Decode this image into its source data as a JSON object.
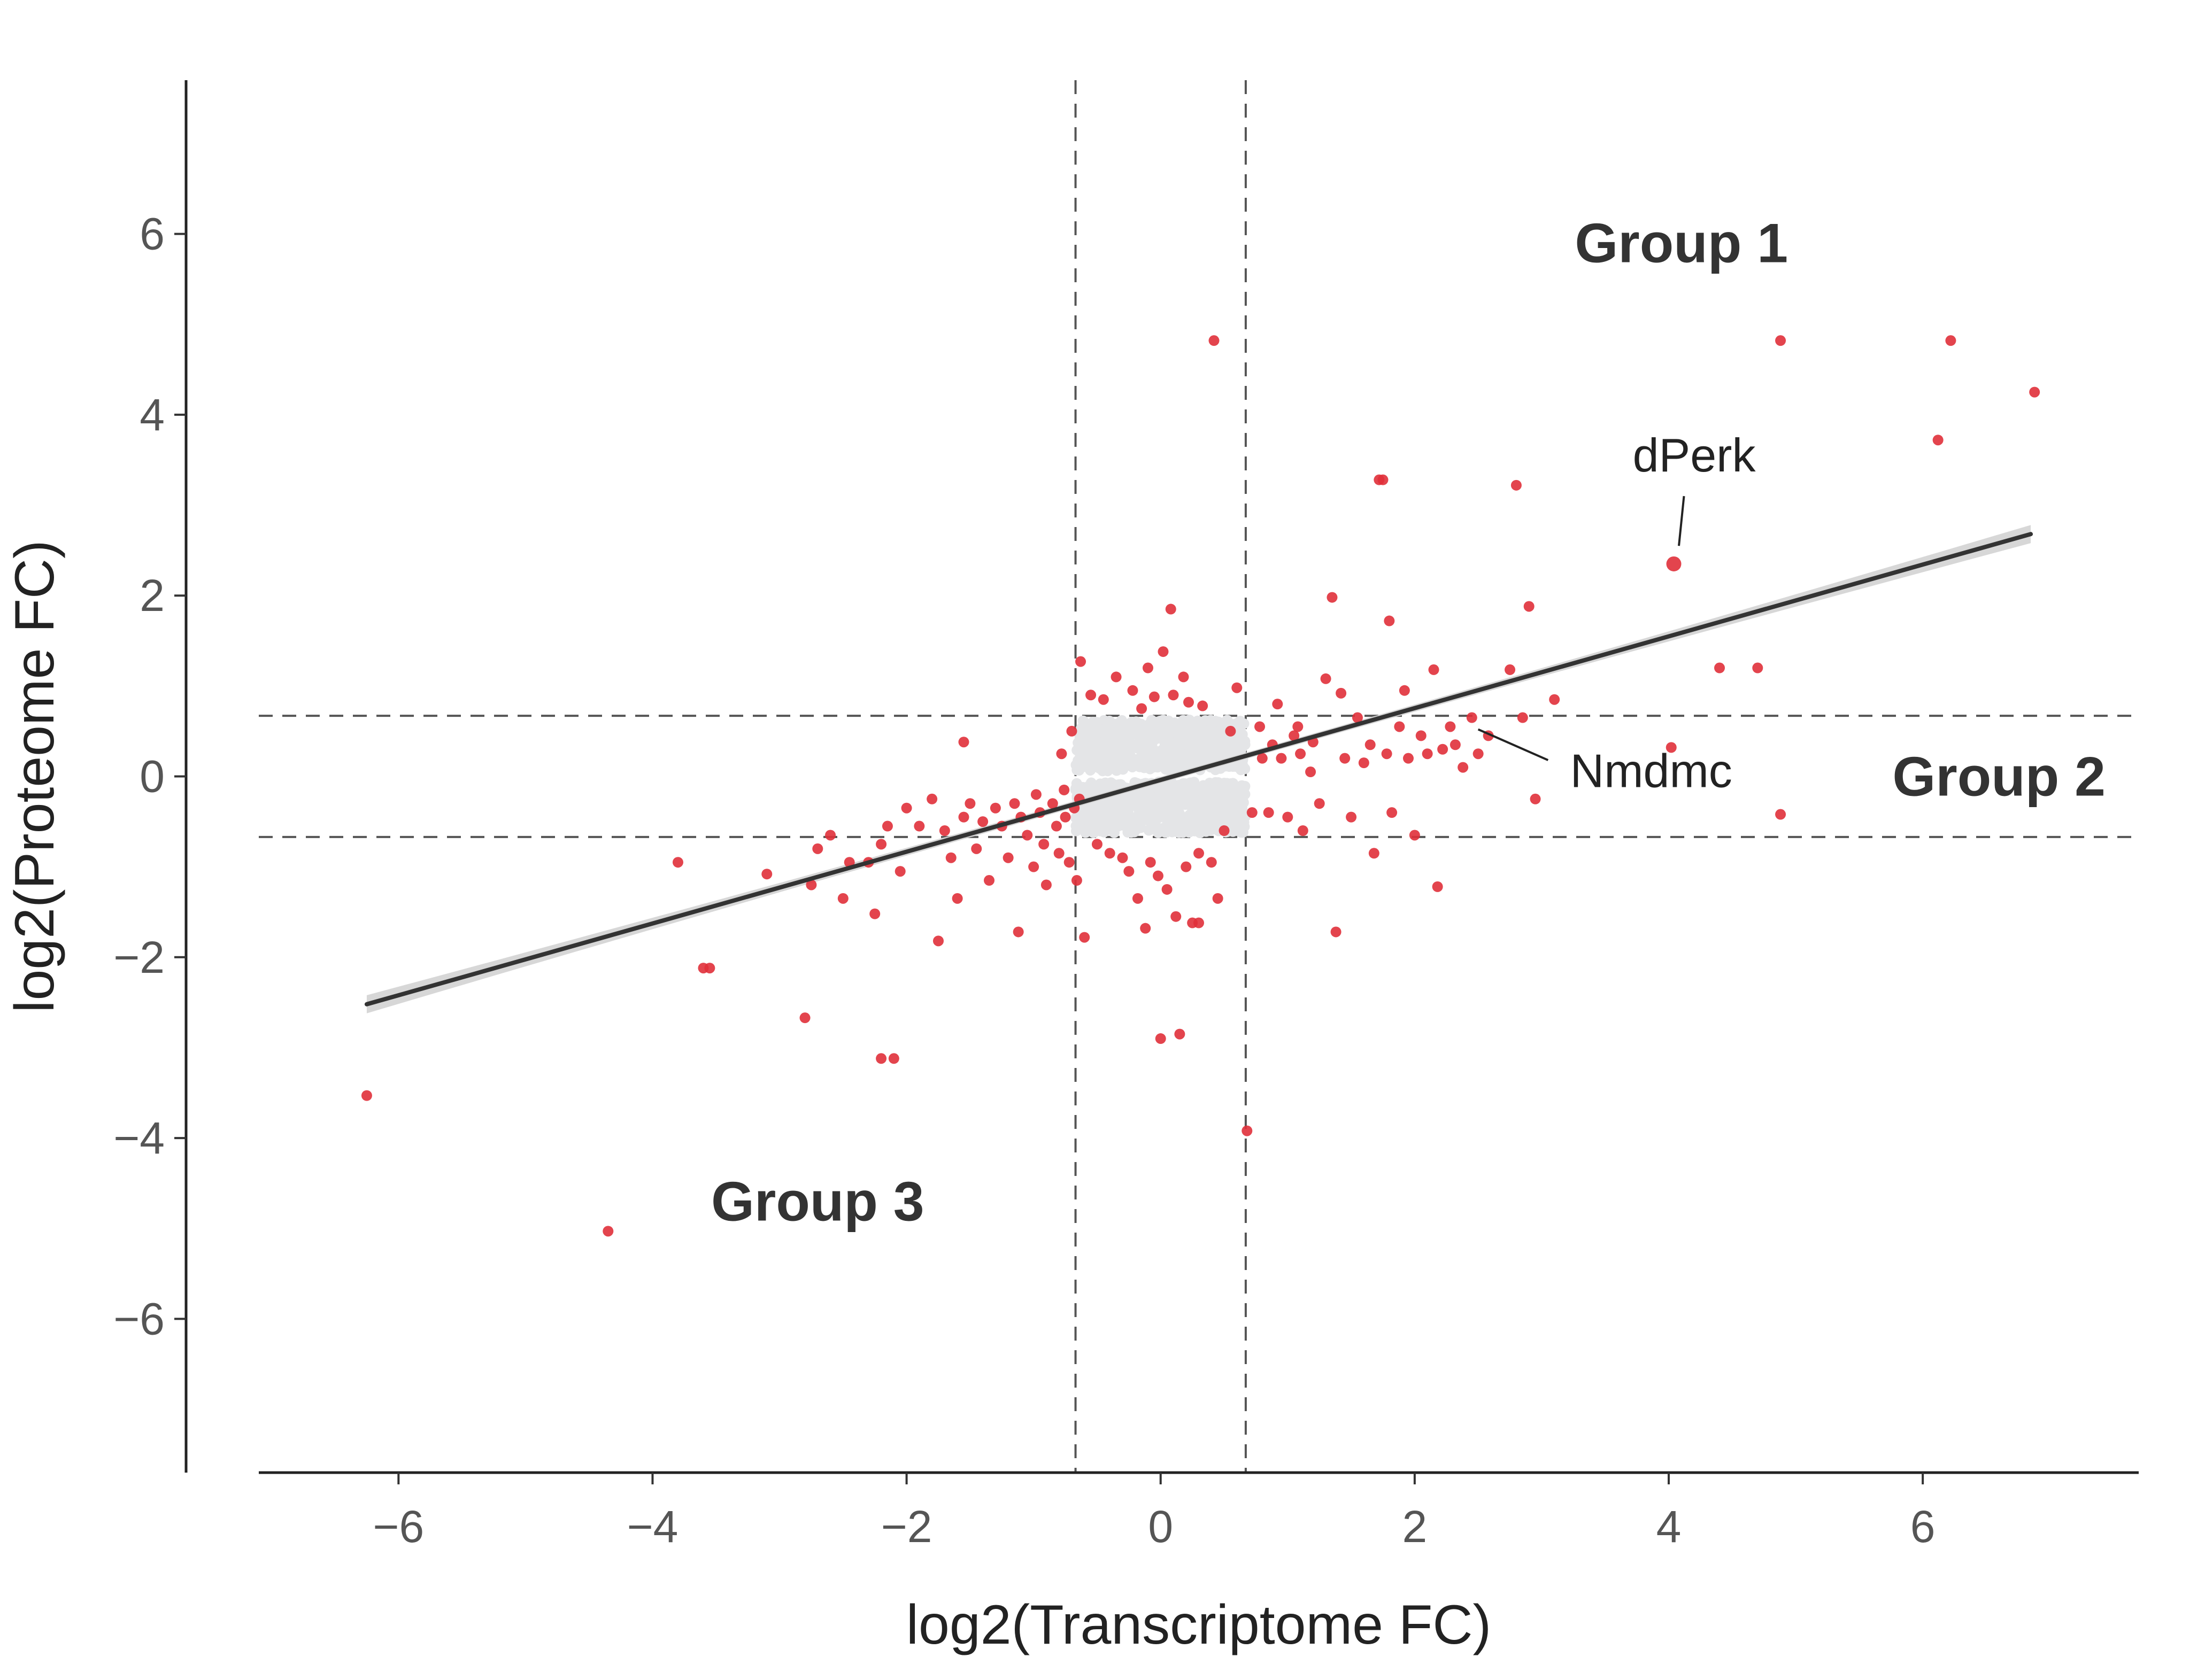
{
  "chart_data": {
    "type": "scatter",
    "title": "",
    "xlabel": "log2(Transcriptome FC)",
    "ylabel": "log2(Proteome  FC)",
    "xlim": [
      -7.1,
      7.7
    ],
    "ylim": [
      -7.7,
      7.7
    ],
    "xticks": [
      -6,
      -4,
      -2,
      0,
      2,
      4,
      6
    ],
    "yticks": [
      -6,
      -4,
      -2,
      0,
      2,
      4,
      6
    ],
    "xtick_labels": [
      "−6",
      "−4",
      "−2",
      "0",
      "2",
      "4",
      "6"
    ],
    "ytick_labels": [
      "−6",
      "−4",
      "−2",
      "0",
      "2",
      "4",
      "6"
    ],
    "thresholds": {
      "x": [
        -0.67,
        0.67
      ],
      "y": [
        -0.67,
        0.67
      ]
    },
    "regression": {
      "x": [
        -6.25,
        6.85
      ],
      "y": [
        -2.52,
        2.68
      ],
      "ci_halfwidth": 0.1
    },
    "colors": {
      "significant": "#e0303a",
      "nonsignificant": "#e4e5e7",
      "line": "#333333",
      "ci": "#d3d3d3",
      "dashed": "#555555"
    },
    "groups": [
      {
        "name": "Group 1",
        "x": 4.1,
        "y": 5.9
      },
      {
        "name": "Group 2",
        "x": 6.6,
        "y": 0.0
      },
      {
        "name": "Group 3",
        "x": -2.7,
        "y": -4.7
      }
    ],
    "annotations": [
      {
        "label": "dPerk",
        "x": 4.04,
        "y": 2.35,
        "label_x": 4.2,
        "label_y": 3.55
      },
      {
        "label": "Nmdmc",
        "x": 2.42,
        "y": 0.58,
        "label_x": 4.5,
        "label_y": 0.0
      }
    ],
    "nonsignificant_cloud": {
      "x_range": [
        -0.67,
        0.67
      ],
      "y_range": [
        -0.67,
        0.67
      ],
      "count": 1400
    },
    "series": [
      {
        "name": "significant",
        "points": [
          [
            -6.25,
            -3.53
          ],
          [
            -4.35,
            -5.03
          ],
          [
            -3.8,
            -0.95
          ],
          [
            -3.6,
            -2.12
          ],
          [
            -3.55,
            -2.12
          ],
          [
            -3.1,
            -1.08
          ],
          [
            -2.8,
            -2.67
          ],
          [
            -2.75,
            -1.2
          ],
          [
            -2.7,
            -0.8
          ],
          [
            -2.6,
            -0.65
          ],
          [
            -2.5,
            -1.35
          ],
          [
            -2.45,
            -0.95
          ],
          [
            -2.3,
            -0.95
          ],
          [
            -2.25,
            -1.52
          ],
          [
            -2.2,
            -0.75
          ],
          [
            -2.2,
            -3.12
          ],
          [
            -2.1,
            -3.12
          ],
          [
            -2.15,
            -0.55
          ],
          [
            -2.05,
            -1.05
          ],
          [
            -2.0,
            -0.35
          ],
          [
            -1.9,
            -0.55
          ],
          [
            -1.8,
            -0.25
          ],
          [
            -1.75,
            -1.82
          ],
          [
            -1.7,
            -0.6
          ],
          [
            -1.65,
            -0.9
          ],
          [
            -1.6,
            -1.35
          ],
          [
            -1.55,
            -0.45
          ],
          [
            -1.55,
            0.38
          ],
          [
            -1.5,
            -0.3
          ],
          [
            -1.45,
            -0.8
          ],
          [
            -1.4,
            -0.5
          ],
          [
            -1.35,
            -1.15
          ],
          [
            -1.3,
            -0.35
          ],
          [
            -1.25,
            -0.55
          ],
          [
            -1.2,
            -0.9
          ],
          [
            -1.15,
            -0.3
          ],
          [
            -1.12,
            -1.72
          ],
          [
            -1.1,
            -0.45
          ],
          [
            -1.05,
            -0.65
          ],
          [
            -1.0,
            -1.0
          ],
          [
            -0.98,
            -0.2
          ],
          [
            -0.95,
            -0.4
          ],
          [
            -0.92,
            -0.75
          ],
          [
            -0.9,
            -1.2
          ],
          [
            -0.85,
            -0.3
          ],
          [
            -0.82,
            -0.55
          ],
          [
            -0.8,
            -0.85
          ],
          [
            -0.78,
            0.25
          ],
          [
            -0.76,
            -0.15
          ],
          [
            -0.75,
            -0.45
          ],
          [
            -0.72,
            -0.95
          ],
          [
            -0.7,
            0.5
          ],
          [
            -0.68,
            -0.35
          ],
          [
            -0.66,
            -1.15
          ],
          [
            -0.64,
            -0.25
          ],
          [
            -0.63,
            1.27
          ],
          [
            -0.6,
            -1.78
          ],
          [
            -0.55,
            0.9
          ],
          [
            -0.5,
            -0.75
          ],
          [
            -0.45,
            0.85
          ],
          [
            -0.4,
            -0.85
          ],
          [
            -0.35,
            1.1
          ],
          [
            -0.3,
            -0.9
          ],
          [
            -0.25,
            -1.05
          ],
          [
            -0.22,
            0.95
          ],
          [
            -0.18,
            -1.35
          ],
          [
            -0.15,
            0.75
          ],
          [
            -0.12,
            -1.68
          ],
          [
            -0.1,
            1.2
          ],
          [
            -0.08,
            -0.95
          ],
          [
            -0.05,
            0.88
          ],
          [
            -0.02,
            -1.1
          ],
          [
            0.0,
            -2.9
          ],
          [
            0.02,
            1.38
          ],
          [
            0.05,
            -1.25
          ],
          [
            0.08,
            1.85
          ],
          [
            0.1,
            0.9
          ],
          [
            0.12,
            -1.55
          ],
          [
            0.15,
            -2.85
          ],
          [
            0.18,
            1.1
          ],
          [
            0.2,
            -1.0
          ],
          [
            0.22,
            0.82
          ],
          [
            0.25,
            -1.62
          ],
          [
            0.3,
            -1.62
          ],
          [
            0.3,
            -0.85
          ],
          [
            0.33,
            0.78
          ],
          [
            0.4,
            -0.95
          ],
          [
            0.42,
            4.82
          ],
          [
            0.45,
            -1.35
          ],
          [
            0.5,
            -0.6
          ],
          [
            0.55,
            0.5
          ],
          [
            0.6,
            0.98
          ],
          [
            0.68,
            -3.92
          ],
          [
            0.72,
            -0.4
          ],
          [
            0.78,
            0.55
          ],
          [
            0.8,
            0.2
          ],
          [
            0.85,
            -0.4
          ],
          [
            0.88,
            0.35
          ],
          [
            0.92,
            0.8
          ],
          [
            0.95,
            0.2
          ],
          [
            1.0,
            -0.45
          ],
          [
            1.05,
            0.45
          ],
          [
            1.08,
            0.55
          ],
          [
            1.1,
            0.25
          ],
          [
            1.12,
            -0.6
          ],
          [
            1.18,
            0.05
          ],
          [
            1.2,
            0.38
          ],
          [
            1.25,
            -0.3
          ],
          [
            1.3,
            1.08
          ],
          [
            1.35,
            1.98
          ],
          [
            1.38,
            -1.72
          ],
          [
            1.42,
            0.92
          ],
          [
            1.45,
            0.2
          ],
          [
            1.5,
            -0.45
          ],
          [
            1.55,
            0.65
          ],
          [
            1.6,
            0.15
          ],
          [
            1.65,
            0.35
          ],
          [
            1.68,
            -0.85
          ],
          [
            1.72,
            3.28
          ],
          [
            1.75,
            3.28
          ],
          [
            1.78,
            0.25
          ],
          [
            1.8,
            1.72
          ],
          [
            1.82,
            -0.4
          ],
          [
            1.88,
            0.55
          ],
          [
            1.92,
            0.95
          ],
          [
            1.95,
            0.2
          ],
          [
            2.0,
            -0.65
          ],
          [
            2.05,
            0.45
          ],
          [
            2.1,
            0.25
          ],
          [
            2.15,
            1.18
          ],
          [
            2.18,
            -1.22
          ],
          [
            2.22,
            0.3
          ],
          [
            2.28,
            0.55
          ],
          [
            2.32,
            0.35
          ],
          [
            2.38,
            0.1
          ],
          [
            2.45,
            0.65
          ],
          [
            2.5,
            0.25
          ],
          [
            2.58,
            0.45
          ],
          [
            2.75,
            1.18
          ],
          [
            2.8,
            3.22
          ],
          [
            2.85,
            0.65
          ],
          [
            2.9,
            1.88
          ],
          [
            2.95,
            -0.25
          ],
          [
            3.1,
            0.85
          ],
          [
            4.04,
            2.35
          ],
          [
            4.02,
            0.32
          ],
          [
            4.4,
            1.2
          ],
          [
            4.7,
            1.2
          ],
          [
            4.88,
            -0.42
          ],
          [
            4.88,
            4.82
          ],
          [
            6.12,
            3.72
          ],
          [
            6.22,
            4.82
          ],
          [
            6.88,
            4.25
          ]
        ]
      }
    ]
  }
}
